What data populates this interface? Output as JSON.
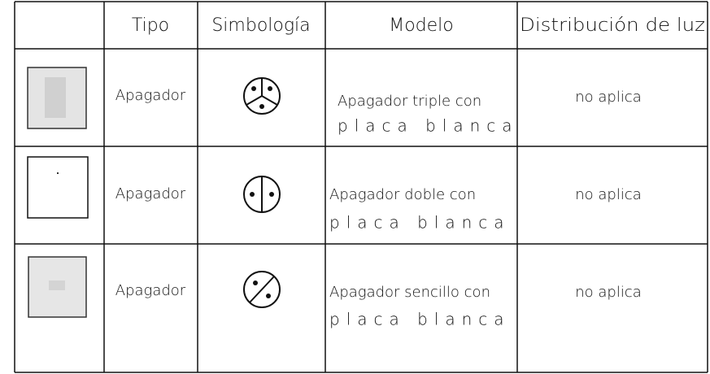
{
  "table": {
    "header": [
      "Tipo",
      "Simbología",
      "Modelo",
      "Distribución de luz"
    ],
    "rows": [
      {
        "tipo": "Apagador",
        "modelo": [
          "Apagador triple con",
          "placa blanca"
        ],
        "distribucion": "no aplica"
      },
      {
        "tipo": "Apagador",
        "modelo": [
          "Apagador doble con",
          "placa blanca"
        ],
        "distribucion": "no aplica"
      },
      {
        "tipo": "Apagador",
        "modelo": [
          "Apagador sencillo con",
          "placa blanca"
        ],
        "distribucion": "no aplica"
      }
    ]
  }
}
